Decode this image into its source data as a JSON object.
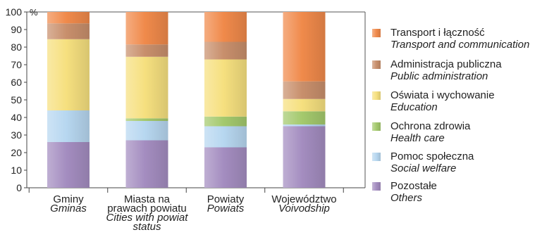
{
  "colors": {
    "transport": "#F08A4B",
    "administration": "#C88F6C",
    "education": "#F6E07F",
    "health": "#A4C96D",
    "social": "#B7D7F0",
    "others": "#A48DC0"
  },
  "chart_data": {
    "type": "bar",
    "stacked": true,
    "ylim": [
      0,
      100
    ],
    "yticks": [
      0,
      10,
      20,
      30,
      40,
      50,
      60,
      70,
      80,
      90,
      100
    ],
    "y_unit": "%",
    "grid": false,
    "legend_position": "right",
    "categories": [
      {
        "pl": [
          "Gminy"
        ],
        "en": [
          "Gminas"
        ]
      },
      {
        "pl": [
          "Miasta na",
          "prawach powiatu"
        ],
        "en": [
          "Cities with powiat",
          "status"
        ]
      },
      {
        "pl": [
          "Powiaty"
        ],
        "en": [
          "Powiats"
        ]
      },
      {
        "pl": [
          "Województwo"
        ],
        "en": [
          "Voivodship"
        ]
      }
    ],
    "series": [
      {
        "key": "others",
        "name_pl": "Pozostałe",
        "name_en": "Others",
        "values": [
          26,
          27,
          23,
          35
        ]
      },
      {
        "key": "social",
        "name_pl": "Pomoc społeczna",
        "name_en": "Social welfare",
        "values": [
          18,
          11,
          12,
          1
        ]
      },
      {
        "key": "health",
        "name_pl": "Ochrona zdrowia",
        "name_en": "Health care",
        "values": [
          0,
          1.5,
          5.5,
          7.5
        ]
      },
      {
        "key": "education",
        "name_pl": "Oświata i wychowanie",
        "name_en": "Education",
        "values": [
          40.5,
          35,
          32.5,
          7
        ]
      },
      {
        "key": "administration",
        "name_pl": "Administracja publiczna",
        "name_en": "Public administration",
        "values": [
          9,
          7,
          10,
          10
        ]
      },
      {
        "key": "transport",
        "name_pl": "Transport i łączność",
        "name_en": "Transport and communication",
        "values": [
          6.5,
          18.5,
          17,
          39.5
        ]
      }
    ]
  },
  "legend": {
    "items": [
      {
        "key": "transport",
        "pl": "Transport i łączność",
        "en": "Transport and communication"
      },
      {
        "key": "administration",
        "pl": "Administracja publiczna",
        "en": "Public administration"
      },
      {
        "key": "education",
        "pl": "Oświata i wychowanie",
        "en": "Education"
      },
      {
        "key": "health",
        "pl": "Ochrona zdrowia",
        "en": "Health care"
      },
      {
        "key": "social",
        "pl": "Pomoc społeczna",
        "en": "Social welfare"
      },
      {
        "key": "others",
        "pl": "Pozostałe",
        "en": "Others"
      }
    ]
  }
}
